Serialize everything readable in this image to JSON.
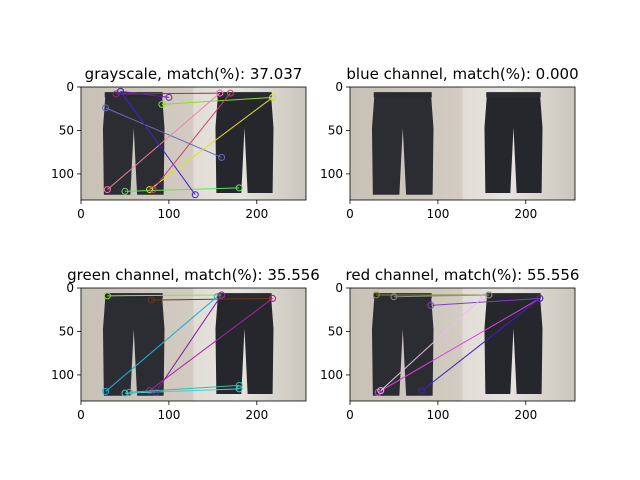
{
  "chart_data": [
    {
      "type": "image-match",
      "title": "grayscale, match(%): 37.037",
      "xlim": [
        0,
        256
      ],
      "ylim": [
        130,
        0
      ],
      "xticks": [
        0,
        100,
        200
      ],
      "yticks": [
        0,
        50,
        100
      ],
      "matches": [
        {
          "x1": 40,
          "y1": 8,
          "x2": 158,
          "y2": 7,
          "color": "#a0287a"
        },
        {
          "x1": 45,
          "y1": 5,
          "x2": 100,
          "y2": 12,
          "color": "#6a1fb0"
        },
        {
          "x1": 92,
          "y1": 20,
          "x2": 218,
          "y2": 12,
          "color": "#88e020"
        },
        {
          "x1": 28,
          "y1": 24,
          "x2": 160,
          "y2": 81,
          "color": "#6a6ab8"
        },
        {
          "x1": 30,
          "y1": 118,
          "x2": 158,
          "y2": 7,
          "color": "#f080b0"
        },
        {
          "x1": 78,
          "y1": 118,
          "x2": 218,
          "y2": 12,
          "color": "#e0e020"
        },
        {
          "x1": 50,
          "y1": 120,
          "x2": 180,
          "y2": 116,
          "color": "#60e060"
        },
        {
          "x1": 45,
          "y1": 5,
          "x2": 130,
          "y2": 124,
          "color": "#4020d0"
        },
        {
          "x1": 82,
          "y1": 118,
          "x2": 170,
          "y2": 7,
          "color": "#d04070"
        }
      ]
    },
    {
      "type": "image-match",
      "title": "blue channel, match(%): 0.000",
      "xlim": [
        0,
        256
      ],
      "ylim": [
        130,
        0
      ],
      "xticks": [
        0,
        100,
        200
      ],
      "yticks": [
        0,
        50,
        100
      ],
      "matches": []
    },
    {
      "type": "image-match",
      "title": "green channel, match(%): 35.556",
      "xlim": [
        0,
        256
      ],
      "ylim": [
        130,
        0
      ],
      "xticks": [
        0,
        100,
        200
      ],
      "yticks": [
        0,
        50,
        100
      ],
      "matches": [
        {
          "x1": 30,
          "y1": 9,
          "x2": 160,
          "y2": 8,
          "color": "#90e040"
        },
        {
          "x1": 80,
          "y1": 14,
          "x2": 218,
          "y2": 12,
          "color": "#6b3a10"
        },
        {
          "x1": 28,
          "y1": 119,
          "x2": 155,
          "y2": 10,
          "color": "#20b0d8"
        },
        {
          "x1": 78,
          "y1": 118,
          "x2": 218,
          "y2": 12,
          "color": "#b020a0"
        },
        {
          "x1": 50,
          "y1": 121,
          "x2": 180,
          "y2": 116,
          "color": "#40d0e0"
        },
        {
          "x1": 85,
          "y1": 120,
          "x2": 160,
          "y2": 8,
          "color": "#8020a0"
        },
        {
          "x1": 55,
          "y1": 120,
          "x2": 180,
          "y2": 112,
          "color": "#30c0a0"
        }
      ]
    },
    {
      "type": "image-match",
      "title": "red channel, match(%): 55.556",
      "xlim": [
        0,
        256
      ],
      "ylim": [
        130,
        0
      ],
      "xticks": [
        0,
        100,
        200
      ],
      "yticks": [
        0,
        50,
        100
      ],
      "matches": [
        {
          "x1": 30,
          "y1": 8,
          "x2": 158,
          "y2": 8,
          "color": "#809020"
        },
        {
          "x1": 92,
          "y1": 20,
          "x2": 216,
          "y2": 12,
          "color": "#8040c0"
        },
        {
          "x1": 32,
          "y1": 120,
          "x2": 216,
          "y2": 12,
          "color": "#e040e0"
        },
        {
          "x1": 35,
          "y1": 118,
          "x2": 152,
          "y2": 10,
          "color": "#e8c0e8"
        },
        {
          "x1": 82,
          "y1": 118,
          "x2": 216,
          "y2": 12,
          "color": "#4020c0"
        },
        {
          "x1": 50,
          "y1": 10,
          "x2": 158,
          "y2": 8,
          "color": "#909090"
        }
      ]
    }
  ]
}
